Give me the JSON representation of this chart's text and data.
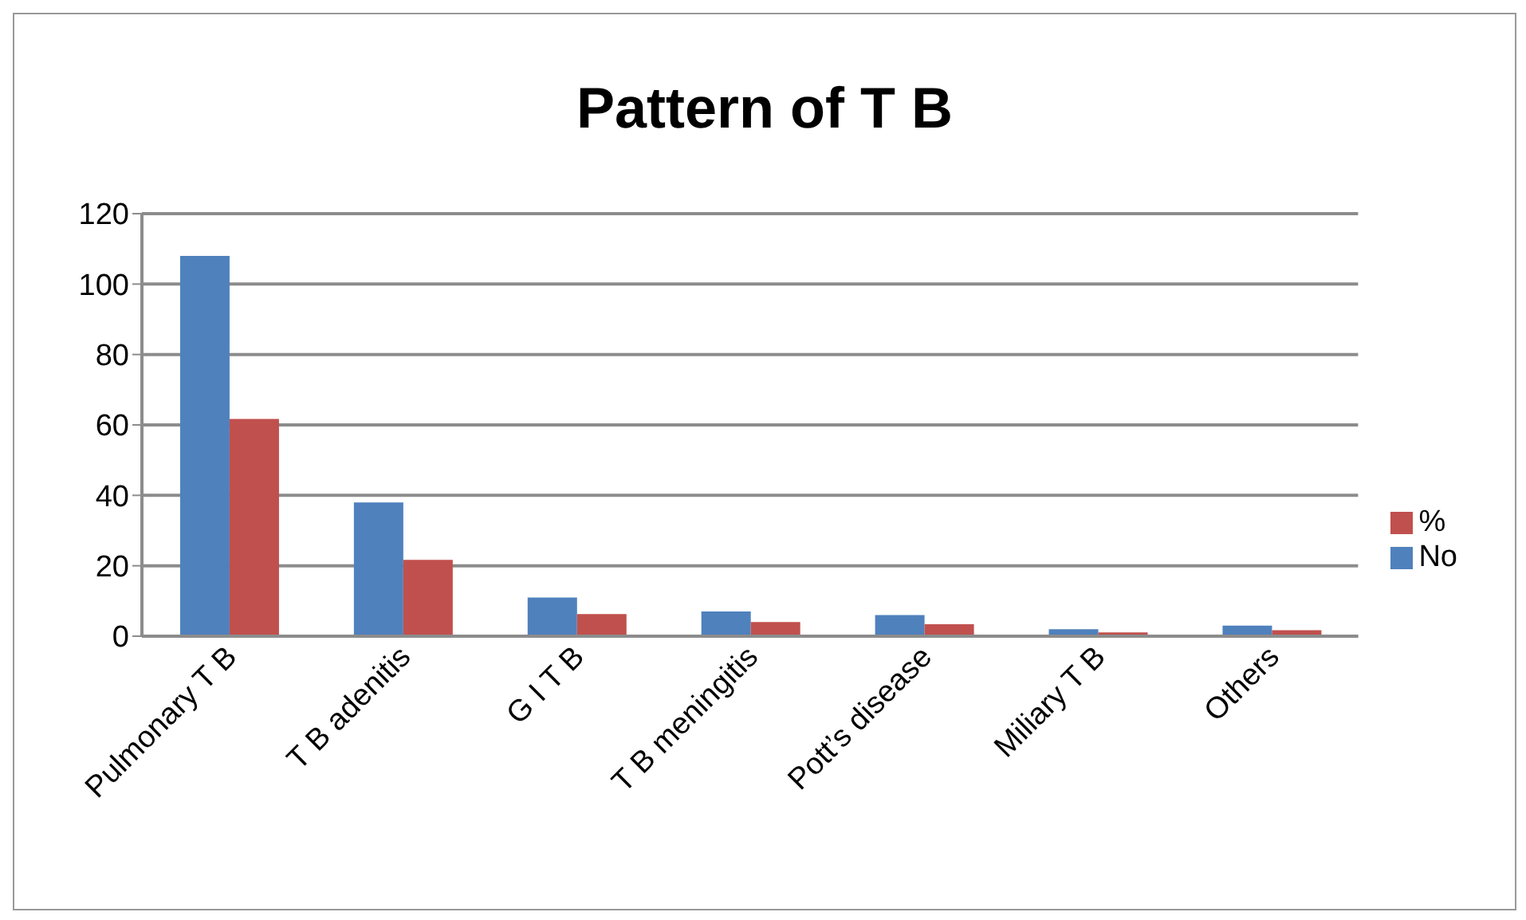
{
  "chart_data": {
    "type": "bar",
    "title": "Pattern of T B",
    "categories": [
      "Pulmonary T B",
      "T B adenitis",
      "G I T B",
      "T B meningitis",
      "Pott’s disease",
      "Miliary T B",
      "Others"
    ],
    "series": [
      {
        "name": "No",
        "color": "#4f81bd",
        "values": [
          108,
          38,
          11,
          7,
          6,
          2,
          3
        ]
      },
      {
        "name": "%",
        "color": "#c0504d",
        "values": [
          61.7,
          21.7,
          6.3,
          4,
          3.4,
          1.1,
          1.7
        ]
      }
    ],
    "ylim": [
      0,
      120
    ],
    "yticks": [
      0,
      20,
      40,
      60,
      80,
      100,
      120
    ],
    "grid": "y",
    "legend": "right"
  }
}
